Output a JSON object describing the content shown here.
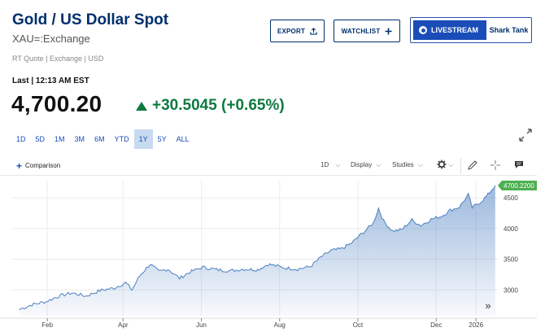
{
  "header": {
    "title": "Gold / US Dollar Spot",
    "symbol": "XAU=:Exchange",
    "meta": "RT Quote | Exchange | USD"
  },
  "buttons": {
    "export": "EXPORT",
    "watchlist": "WATCHLIST"
  },
  "livestream": {
    "label": "LIVESTREAM",
    "show": "Shark Tank"
  },
  "quote": {
    "last_label": "Last | 12:13 AM EST",
    "price": "4,700.20",
    "change": "+30.5045 (+0.65%)",
    "direction": "up",
    "up_color": "#0d7a3e"
  },
  "ranges": {
    "items": [
      "1D",
      "5D",
      "1M",
      "3M",
      "6M",
      "YTD",
      "1Y",
      "5Y",
      "ALL"
    ],
    "selected": "1Y"
  },
  "toolbar": {
    "comparison": "Comparison",
    "interval": "1D",
    "display": "Display",
    "studies": "Studies",
    "icons": [
      "gear-icon",
      "pencil-icon",
      "crosshair-icon",
      "comment-icon",
      "expand-icon"
    ]
  },
  "chart_data": {
    "type": "area",
    "title": "",
    "xlabel": "",
    "ylabel": "",
    "ylim": [
      2580,
      4780
    ],
    "y_ticks": [
      3000,
      3500,
      4000,
      4500
    ],
    "x_ticks": [
      "Feb",
      "Apr",
      "Jun",
      "Aug",
      "Oct",
      "Dec",
      "2026"
    ],
    "x_tick_dates": [
      "2025-02-01",
      "2025-04-01",
      "2025-06-01",
      "2025-08-01",
      "2025-10-01",
      "2025-12-01",
      "2026-01-01"
    ],
    "last_value_label": "4700.2200",
    "series_color": "#4b7fc1",
    "series": [
      {
        "x": [
          "2025-01-10",
          "2025-01-20",
          "2025-01-31",
          "2025-02-10",
          "2025-02-20",
          "2025-03-03",
          "2025-03-14",
          "2025-03-25",
          "2025-04-03",
          "2025-04-08",
          "2025-04-14",
          "2025-04-22",
          "2025-04-29",
          "2025-05-06",
          "2025-05-15",
          "2025-05-23",
          "2025-06-02",
          "2025-06-13",
          "2025-06-24",
          "2025-07-03",
          "2025-07-15",
          "2025-07-23",
          "2025-08-05",
          "2025-08-15",
          "2025-08-25",
          "2025-09-02",
          "2025-09-10",
          "2025-09-18",
          "2025-09-26",
          "2025-10-01",
          "2025-10-08",
          "2025-10-13",
          "2025-10-17",
          "2025-10-21",
          "2025-10-28",
          "2025-11-04",
          "2025-11-12",
          "2025-11-19",
          "2025-11-27",
          "2025-12-05",
          "2025-12-12",
          "2025-12-19",
          "2025-12-26",
          "2025-12-29",
          "2026-01-05",
          "2026-01-09",
          "2026-01-14",
          "2026-01-16"
        ],
        "values": [
          2680,
          2760,
          2810,
          2900,
          2950,
          2900,
          2990,
          3030,
          3120,
          3000,
          3230,
          3420,
          3300,
          3340,
          3190,
          3290,
          3370,
          3330,
          3310,
          3340,
          3330,
          3420,
          3360,
          3340,
          3380,
          3530,
          3640,
          3670,
          3760,
          3860,
          3990,
          4090,
          4330,
          4120,
          3960,
          3980,
          4140,
          4050,
          4150,
          4200,
          4300,
          4350,
          4550,
          4340,
          4440,
          4520,
          4650,
          4700
        ]
      }
    ]
  }
}
